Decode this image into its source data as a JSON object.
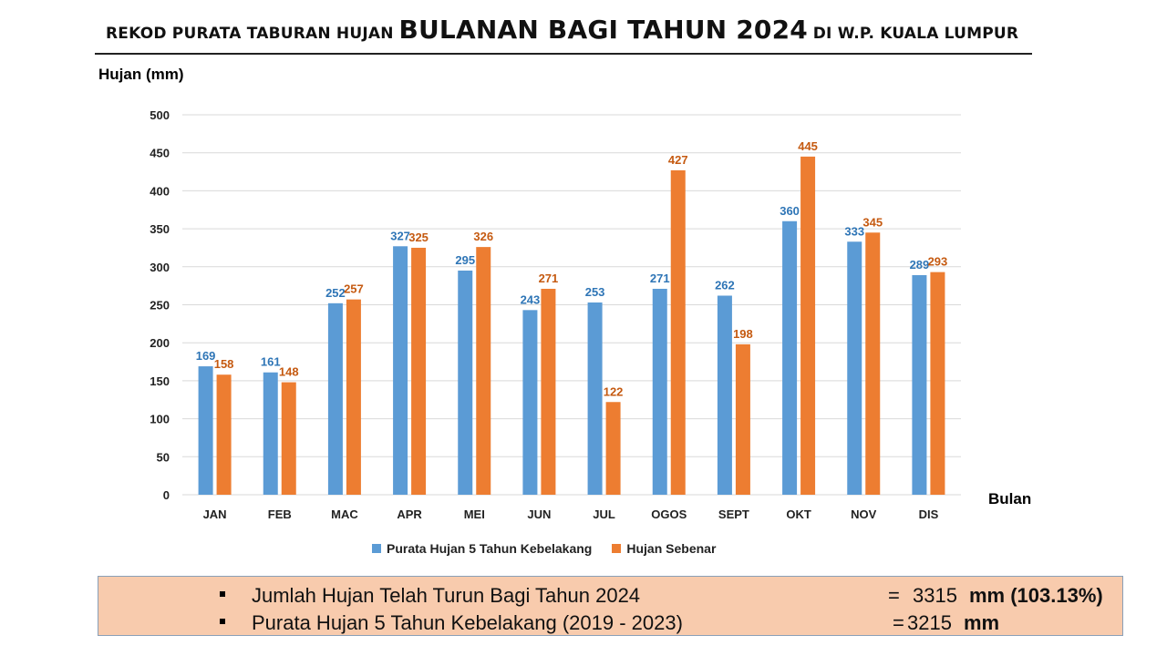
{
  "title": {
    "prefix": "REKOD PURATA TABURAN HUJAN",
    "main": "BULANAN BAGI TAHUN 2024",
    "suffix": "DI W.P. KUALA LUMPUR"
  },
  "colors": {
    "series1": "#5b9bd5",
    "series2": "#ed7d31",
    "label1": "#2e75b6",
    "label2": "#c55a11",
    "grid": "#d9d9d9",
    "summary_bg": "#f8cbad"
  },
  "chart_data": {
    "type": "bar",
    "title": "REKOD PURATA TABURAN HUJAN BULANAN BAGI TAHUN 2024 DI W.P. KUALA LUMPUR",
    "xlabel": "Bulan",
    "ylabel": "Hujan (mm)",
    "ylim": [
      0,
      500
    ],
    "yticks": [
      0,
      50,
      100,
      150,
      200,
      250,
      300,
      350,
      400,
      450,
      500
    ],
    "grid": true,
    "legend_position": "bottom",
    "categories": [
      "JAN",
      "FEB",
      "MAC",
      "APR",
      "MEI",
      "JUN",
      "JUL",
      "OGOS",
      "SEPT",
      "OKT",
      "NOV",
      "DIS"
    ],
    "series": [
      {
        "name": "Purata Hujan 5 Tahun Kebelakang",
        "values": [
          169,
          161,
          252,
          327,
          295,
          243,
          253,
          271,
          262,
          360,
          333,
          289
        ]
      },
      {
        "name": "Hujan Sebenar",
        "values": [
          158,
          148,
          257,
          325,
          326,
          271,
          122,
          427,
          198,
          445,
          345,
          293
        ]
      }
    ]
  },
  "summary": {
    "row1": {
      "label": "Jumlah Hujan Telah Turun Bagi Tahun 2024",
      "eq": "=",
      "value": "3315",
      "unit": "mm (103.13%)"
    },
    "row2": {
      "label": "Purata Hujan 5 Tahun Kebelakang (2019 - 2023)",
      "eq": "=",
      "value": "3215",
      "unit": "mm"
    }
  }
}
